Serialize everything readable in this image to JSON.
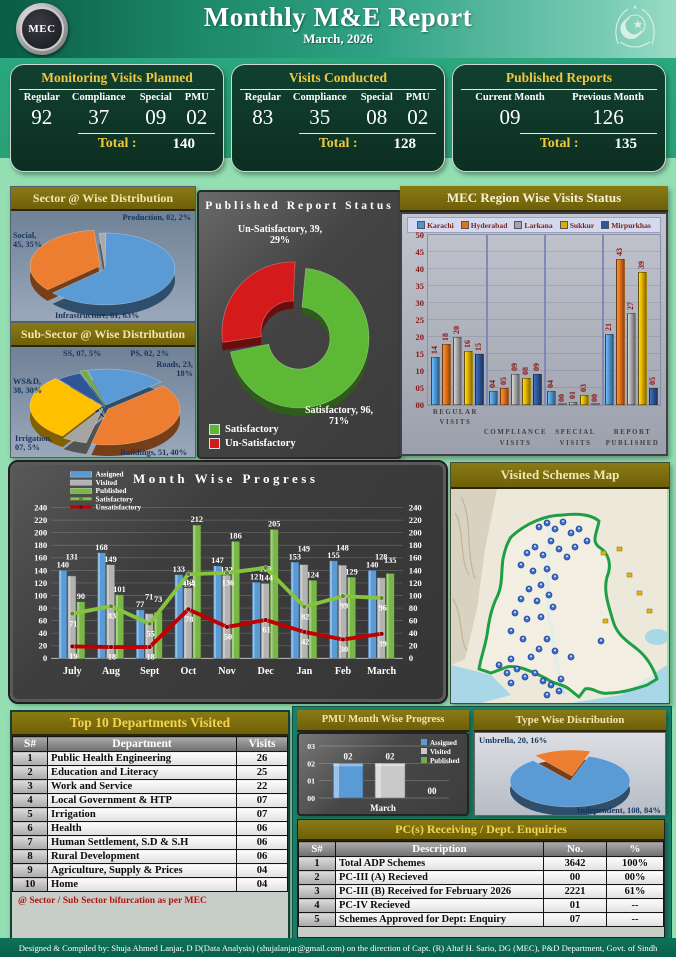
{
  "header": {
    "title": "Monthly M&E Report",
    "subtitle": "March, 2026",
    "logo_text": "MEC"
  },
  "summary_cards": [
    {
      "title": "Monitoring Visits Planned",
      "columns": [
        "Regular",
        "Compliance",
        "Special",
        "PMU"
      ],
      "values": [
        "92",
        "37",
        "09",
        "02"
      ],
      "total_label": "Total :",
      "total": "140"
    },
    {
      "title": "Visits Conducted",
      "columns": [
        "Regular",
        "Compliance",
        "Special",
        "PMU"
      ],
      "values": [
        "83",
        "35",
        "08",
        "02"
      ],
      "total_label": "Total :",
      "total": "128"
    },
    {
      "title": "Published Reports",
      "columns": [
        "Current Month",
        "Previous Month"
      ],
      "values": [
        "09",
        "126"
      ],
      "total_label": "Total :",
      "total": "135"
    }
  ],
  "chart_data": [
    {
      "id": "sector-pie",
      "type": "pie",
      "title": "Sector @ Wise Distribution",
      "segments": [
        {
          "label": "Production",
          "value": 2,
          "percent": "2%",
          "color": "#a9a9a9"
        },
        {
          "label": "Infrastructure",
          "value": 81,
          "percent": "63%",
          "color": "#5b9bd5"
        },
        {
          "label": "Social",
          "value": 45,
          "percent": "35%",
          "color": "#ed7d31"
        }
      ],
      "label_texts": [
        "Production, 02, 2%",
        "Social,\n45, 35%",
        "Infrastructure, 81, 63%"
      ]
    },
    {
      "id": "subsector-pie",
      "type": "pie",
      "title": "Sub-Sector @ Wise Distribution",
      "segments": [
        {
          "label": "SS",
          "value": 7,
          "percent": "5%",
          "color": "#2e5597"
        },
        {
          "label": "PS",
          "value": 2,
          "percent": "2%",
          "color": "#70ad47"
        },
        {
          "label": "Roads",
          "value": 23,
          "percent": "18%",
          "color": "#5b9bd5"
        },
        {
          "label": "Buildings",
          "value": 51,
          "percent": "40%",
          "color": "#ed7d31"
        },
        {
          "label": "Irrigation",
          "value": 7,
          "percent": "5%",
          "color": "#a5a5a5"
        },
        {
          "label": "WS&D",
          "value": 38,
          "percent": "30%",
          "color": "#ffc000"
        }
      ],
      "label_texts": [
        "SS, 07, 5%",
        "PS, 02, 2%",
        "Roads, 23,\n18%",
        "WS&D,\n38, 30%",
        "Irrigation,\n07, 5%",
        "Buildings, 51, 40%"
      ]
    },
    {
      "id": "report-status-donut",
      "type": "donut",
      "title": "Published Report Status",
      "segments": [
        {
          "label": "Satisfactory",
          "value": 96,
          "percent": "71%",
          "color": "#5cb835"
        },
        {
          "label": "Un-Satisfactory",
          "value": 39,
          "percent": "29%",
          "color": "#d41a1a"
        }
      ],
      "label_texts": [
        "Un-Satisfactory, 39,\n29%",
        "Satisfactory, 96,\n71%"
      ],
      "legend_labels": [
        "Satisfactory",
        "Un-Satisfactory"
      ]
    },
    {
      "id": "region-bars",
      "type": "bar",
      "title": "MEC Region Wise Visits Status",
      "series": [
        "Karachi",
        "Hyderabad",
        "Larkana",
        "Sukkur",
        "Mirpurkhas"
      ],
      "colors": [
        "#4f93ce",
        "#e2711d",
        "#a5a5a5",
        "#e0ac00",
        "#2f5597"
      ],
      "categories": [
        "REGULAR\nVISITS",
        "COMPLIANCE\nVISITS",
        "SPECIAL\nVISITS",
        "REPORT\nPUBLISHED"
      ],
      "values": [
        [
          14,
          18,
          20,
          16,
          15
        ],
        [
          4,
          5,
          9,
          8,
          9
        ],
        [
          4,
          0,
          1,
          3,
          0
        ],
        [
          21,
          43,
          27,
          39,
          5
        ]
      ],
      "labels": [
        [
          "14",
          "18",
          "20",
          "16",
          "15"
        ],
        [
          "04",
          "05",
          "09",
          "08",
          "09"
        ],
        [
          "04",
          "00",
          "01",
          "03",
          "00"
        ],
        [
          "21",
          "43",
          "27",
          "39",
          "05"
        ]
      ],
      "ylim": [
        0,
        50
      ],
      "yticks": [
        "50",
        "45",
        "40",
        "35",
        "30",
        "25",
        "20",
        "15",
        "10",
        "05",
        "00"
      ]
    },
    {
      "id": "month-progress",
      "type": "combo",
      "title": "Month Wise Progress",
      "categories": [
        "July",
        "Aug",
        "Sept",
        "Oct",
        "Nov",
        "Dec",
        "Jan",
        "Feb",
        "March"
      ],
      "bar_series": [
        {
          "name": "Assigned",
          "color": "#5b9bd5",
          "values": [
            140,
            168,
            77,
            133,
            147,
            121,
            153,
            155,
            140
          ]
        },
        {
          "name": "Visited",
          "color": "#b3b3b3",
          "values": [
            131,
            149,
            71,
            112,
            132,
            119,
            149,
            148,
            128
          ]
        },
        {
          "name": "Published",
          "color": "#7ab648",
          "values": [
            90,
            101,
            73,
            212,
            186,
            205,
            124,
            129,
            135
          ]
        }
      ],
      "line_series": [
        {
          "name": "Satisfactory",
          "color": "#86c440",
          "values": [
            71,
            83,
            55,
            134,
            136,
            144,
            82,
            99,
            96
          ]
        },
        {
          "name": "Unsatisfactory",
          "color": "#c00000",
          "values": [
            19,
            18,
            18,
            78,
            50,
            61,
            42,
            30,
            39
          ]
        }
      ],
      "ylim": [
        0,
        240
      ],
      "ytick_step": 20
    },
    {
      "id": "pmu-progress",
      "type": "bar",
      "title": "PMU Month Wise Progress",
      "category": "March",
      "series": [
        {
          "name": "Assigned",
          "color": "#5b9bd5",
          "value": 2,
          "label": "02"
        },
        {
          "name": "Visited",
          "color": "#c9c9c9",
          "value": 2,
          "label": "02"
        },
        {
          "name": "Published",
          "color": "#70ad47",
          "value": 0,
          "label": "00"
        }
      ],
      "ylim": [
        0,
        3
      ],
      "yticks": [
        "03",
        "02",
        "01",
        "00"
      ]
    },
    {
      "id": "type-pie",
      "type": "pie",
      "title": "Type Wise Distribution",
      "segments": [
        {
          "label": "Umbrella",
          "value": 20,
          "percent": "16%",
          "color": "#ed7d31"
        },
        {
          "label": "Independent",
          "value": 108,
          "percent": "84%",
          "color": "#5b9bd5"
        }
      ],
      "label_texts": [
        "Umbrella, 20, 16%",
        "Independent, 108, 84%"
      ]
    }
  ],
  "map": {
    "title": "Visited Schemes Map"
  },
  "top10": {
    "title": "Top 10 Departments Visited",
    "headers": [
      "S#",
      "Department",
      "Visits"
    ],
    "rows": [
      [
        "1",
        "Public Health Engineering",
        "26"
      ],
      [
        "2",
        "Education and Literacy",
        "25"
      ],
      [
        "3",
        "Work and Service",
        "22"
      ],
      [
        "4",
        "Local Government & HTP",
        "07"
      ],
      [
        "5",
        "Irrigation",
        "07"
      ],
      [
        "6",
        "Health",
        "06"
      ],
      [
        "7",
        "Human Settlement, S.D & S.H",
        "06"
      ],
      [
        "8",
        "Rural Development",
        "06"
      ],
      [
        "9",
        "Agriculture, Supply & Prices",
        "04"
      ],
      [
        "10",
        "Home",
        "04"
      ]
    ],
    "footnote": "@ Sector / Sub Sector bifurcation as per MEC"
  },
  "pcs": {
    "title": "PC(s) Receiving / Dept. Enquiries",
    "headers": [
      "S#",
      "Description",
      "No.",
      "%"
    ],
    "rows": [
      [
        "1",
        "Total ADP Schemes",
        "3642",
        "100%"
      ],
      [
        "2",
        "PC-III (A) Recieved",
        "00",
        "00%"
      ],
      [
        "3",
        "PC-III (B) Received for February 2026",
        "2221",
        "61%"
      ],
      [
        "4",
        "PC-IV Recieved",
        "01",
        "--"
      ],
      [
        "5",
        "Schemes Approved for Dept: Enquiry",
        "07",
        "--"
      ]
    ]
  },
  "footer": {
    "text": "Designed & Compiled by:  Shuja Ahmed Lanjar, D D(Data Analysis) (shujalanjar@gmail.com) on the direction of Capt. (R) Altaf H. Sario, DG (MEC), P&D Department, Govt. of Sindh"
  },
  "colors": {
    "page_bg": "#93dfb2",
    "band": "#2aa77e",
    "card_bg": "#0c2f22",
    "gold": "#f0c83c",
    "olive_header": "#7a6b10",
    "teal_back": "#1b8169",
    "footnote_red": "#b31212"
  }
}
